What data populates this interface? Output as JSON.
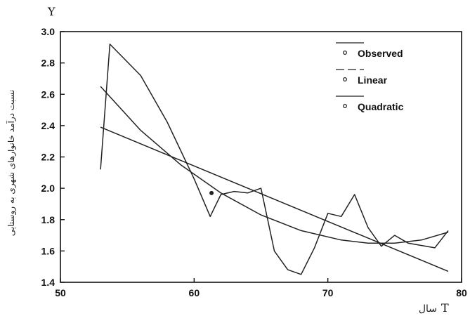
{
  "chart_data": {
    "type": "line",
    "y_axis_letter": "Y",
    "x_axis_letter": "T",
    "xlabel_fa": "سال",
    "ylabel": "نسبت درآمد خانوارهای شهری به روستایی",
    "xlim": [
      50,
      80
    ],
    "ylim": [
      1.4,
      3.0
    ],
    "x_ticks": [
      "50",
      "60",
      "70",
      "80"
    ],
    "y_ticks": [
      "1.4",
      "1.6",
      "1.8",
      "2.0",
      "2.2",
      "2.4",
      "2.6",
      "2.8",
      "3.0"
    ],
    "legend": [
      "Observed",
      "Linear",
      "Quadratic"
    ],
    "legend_position": "top-right",
    "grid": false,
    "series": [
      {
        "name": "Observed",
        "x": [
          53,
          53.7,
          56,
          58,
          60,
          61.2,
          62,
          63,
          64,
          65,
          66,
          67,
          68,
          69,
          70,
          71,
          72,
          73,
          74,
          75,
          76,
          78,
          79
        ],
        "y": [
          2.12,
          2.92,
          2.72,
          2.42,
          2.06,
          1.82,
          1.96,
          1.98,
          1.97,
          2.0,
          1.6,
          1.48,
          1.45,
          1.62,
          1.84,
          1.82,
          1.96,
          1.75,
          1.63,
          1.7,
          1.65,
          1.62,
          1.73
        ]
      },
      {
        "name": "Linear",
        "x": [
          53,
          79
        ],
        "y": [
          2.39,
          1.47
        ]
      },
      {
        "name": "Quadratic",
        "x": [
          53,
          56,
          59,
          62,
          65,
          68,
          71,
          73,
          75,
          77,
          79
        ],
        "y": [
          2.65,
          2.37,
          2.15,
          1.97,
          1.83,
          1.73,
          1.67,
          1.65,
          1.65,
          1.67,
          1.72
        ]
      }
    ],
    "stray_point": {
      "x": 61.3,
      "y": 1.97
    }
  }
}
